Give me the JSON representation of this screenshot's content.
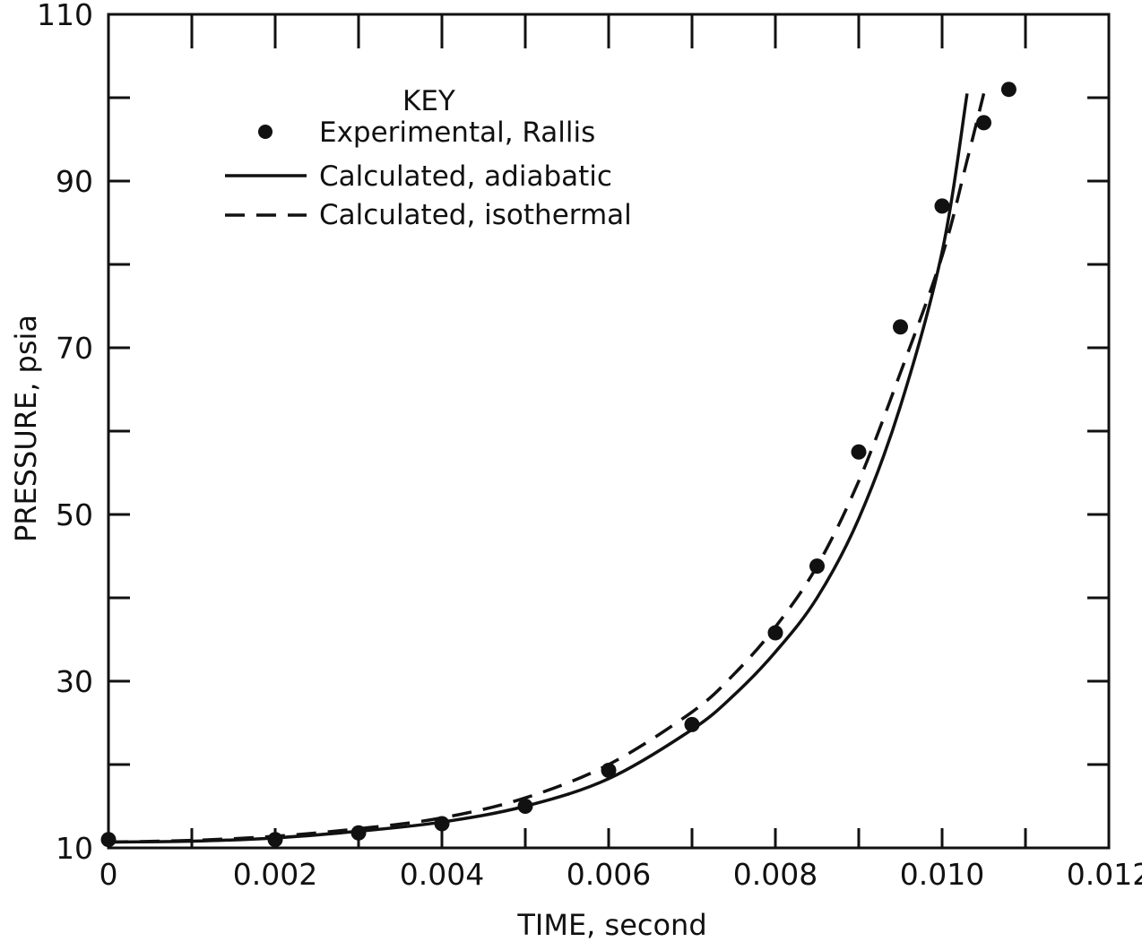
{
  "chart_data": {
    "type": "line",
    "xlabel": "TIME, second",
    "ylabel": "PRESSURE, psia",
    "xlim": [
      0,
      0.012
    ],
    "ylim": [
      10,
      110
    ],
    "x_ticks": [
      0,
      0.001,
      0.002,
      0.003,
      0.004,
      0.005,
      0.006,
      0.007,
      0.008,
      0.009,
      0.01,
      0.011,
      0.012
    ],
    "x_tick_labels": [
      {
        "value": 0,
        "label": "0"
      },
      {
        "value": 0.002,
        "label": "0.002"
      },
      {
        "value": 0.004,
        "label": "0.004"
      },
      {
        "value": 0.006,
        "label": "0.006"
      },
      {
        "value": 0.008,
        "label": "0.008"
      },
      {
        "value": 0.01,
        "label": "0.010"
      },
      {
        "value": 0.012,
        "label": "0.012"
      }
    ],
    "y_ticks": [
      10,
      20,
      30,
      40,
      50,
      60,
      70,
      80,
      90,
      100,
      110
    ],
    "y_tick_labels": [
      {
        "value": 10,
        "label": "10"
      },
      {
        "value": 30,
        "label": "30"
      },
      {
        "value": 50,
        "label": "50"
      },
      {
        "value": 70,
        "label": "70"
      },
      {
        "value": 90,
        "label": "90"
      },
      {
        "value": 110,
        "label": "110"
      }
    ],
    "grid": false,
    "legend": {
      "title": "KEY",
      "placement": "top-left",
      "entries": [
        "Experimental, Rallis",
        "Calculated, adiabatic",
        "Calculated, isothermal"
      ]
    },
    "series": [
      {
        "name": "Experimental, Rallis",
        "style": "points",
        "x": [
          0.0,
          0.002,
          0.003,
          0.004,
          0.005,
          0.006,
          0.007,
          0.008,
          0.0085,
          0.009,
          0.0095,
          0.01,
          0.0105,
          0.0108
        ],
        "y": [
          11.0,
          11.0,
          11.8,
          12.9,
          15.0,
          19.3,
          24.8,
          35.8,
          43.8,
          57.5,
          72.5,
          87.0,
          97.0,
          101.0
        ]
      },
      {
        "name": "Calculated, adiabatic",
        "style": "solid",
        "x": [
          0.0,
          0.001,
          0.002,
          0.003,
          0.004,
          0.005,
          0.006,
          0.007,
          0.0075,
          0.008,
          0.0085,
          0.009,
          0.0095,
          0.01,
          0.0103
        ],
        "y": [
          10.7,
          10.8,
          11.2,
          12.0,
          13.1,
          15.0,
          18.3,
          24.2,
          28.3,
          33.5,
          40.0,
          49.5,
          63.0,
          81.5,
          100.5
        ]
      },
      {
        "name": "Calculated, isothermal",
        "style": "dashed",
        "x": [
          0.0,
          0.001,
          0.002,
          0.003,
          0.004,
          0.005,
          0.006,
          0.007,
          0.0075,
          0.008,
          0.0085,
          0.009,
          0.0095,
          0.01,
          0.0103,
          0.0105
        ],
        "y": [
          10.7,
          10.9,
          11.4,
          12.3,
          13.6,
          16.0,
          20.0,
          26.3,
          30.8,
          36.5,
          43.8,
          54.0,
          67.0,
          81.0,
          92.5,
          100.5
        ]
      }
    ]
  }
}
